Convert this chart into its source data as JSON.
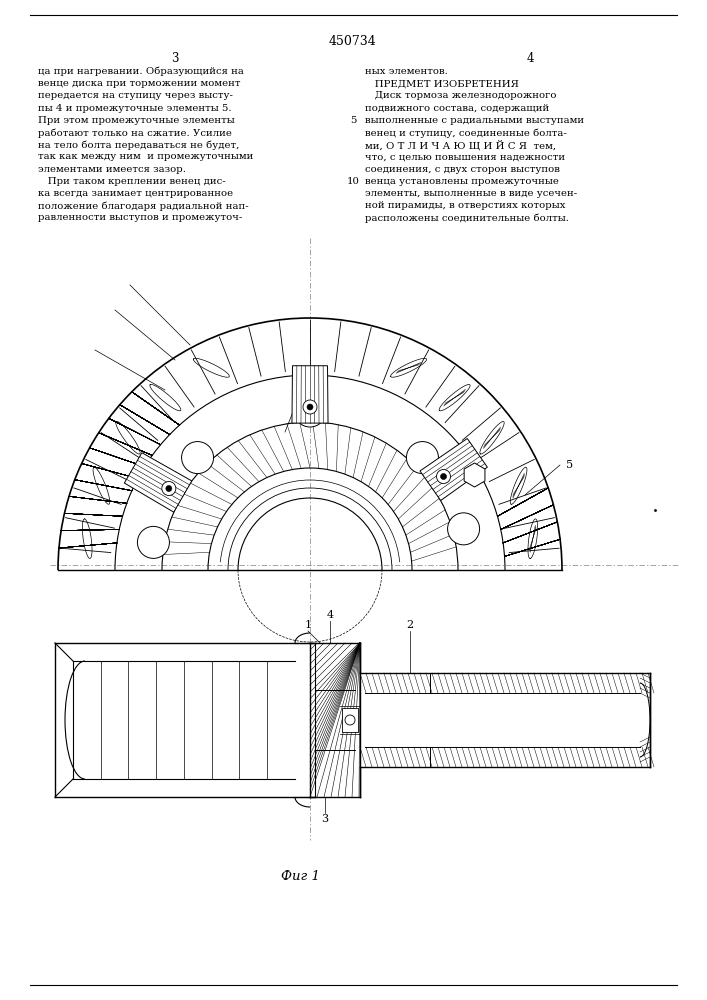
{
  "patent_number": "450734",
  "page_left": "3",
  "page_right": "4",
  "text_left_col": [
    "ца при нагревании. Образующийся на",
    "венце диска при торможении момент",
    "передается на ступицу через высту-",
    "пы 4 и промежуточные элементы 5.",
    "При этом промежуточные элементы",
    "работают только на сжатие. Усилие",
    "на тело болта передаваться не будет,",
    "так как между ним  и промежуточными",
    "элементами имеется зазор.",
    "   При таком креплении венец дис-",
    "ка всегда занимает центрированное",
    "положение благодаря радиальной нап-",
    "равленности выступов и промежуточ-"
  ],
  "text_right_col": [
    "ных элементов.",
    "   ПРЕДМЕТ ИЗОБРЕТЕНИЯ",
    "   Диск тормоза железнодорожного",
    "подвижного состава, содержащий",
    "выполненные с радиальными выступами",
    "венец и ступицу, соединенные болта-",
    "ми, О Т Л И Ч А Ю Щ И Й С Я  тем,",
    "что, с целью повышения надежности",
    "соединения, с двух сторон выступов",
    "венца установлены промежуточные",
    "элементы, выполненные в виде усечен-",
    "ной пирамиды, в отверстиях которых",
    "расположены соединительные болты."
  ],
  "line_numbers": {
    "5": 4,
    "10": 9
  },
  "caption": "Фиг 1",
  "bg_color": "#ffffff",
  "line_color": "#000000",
  "text_color": "#000000"
}
